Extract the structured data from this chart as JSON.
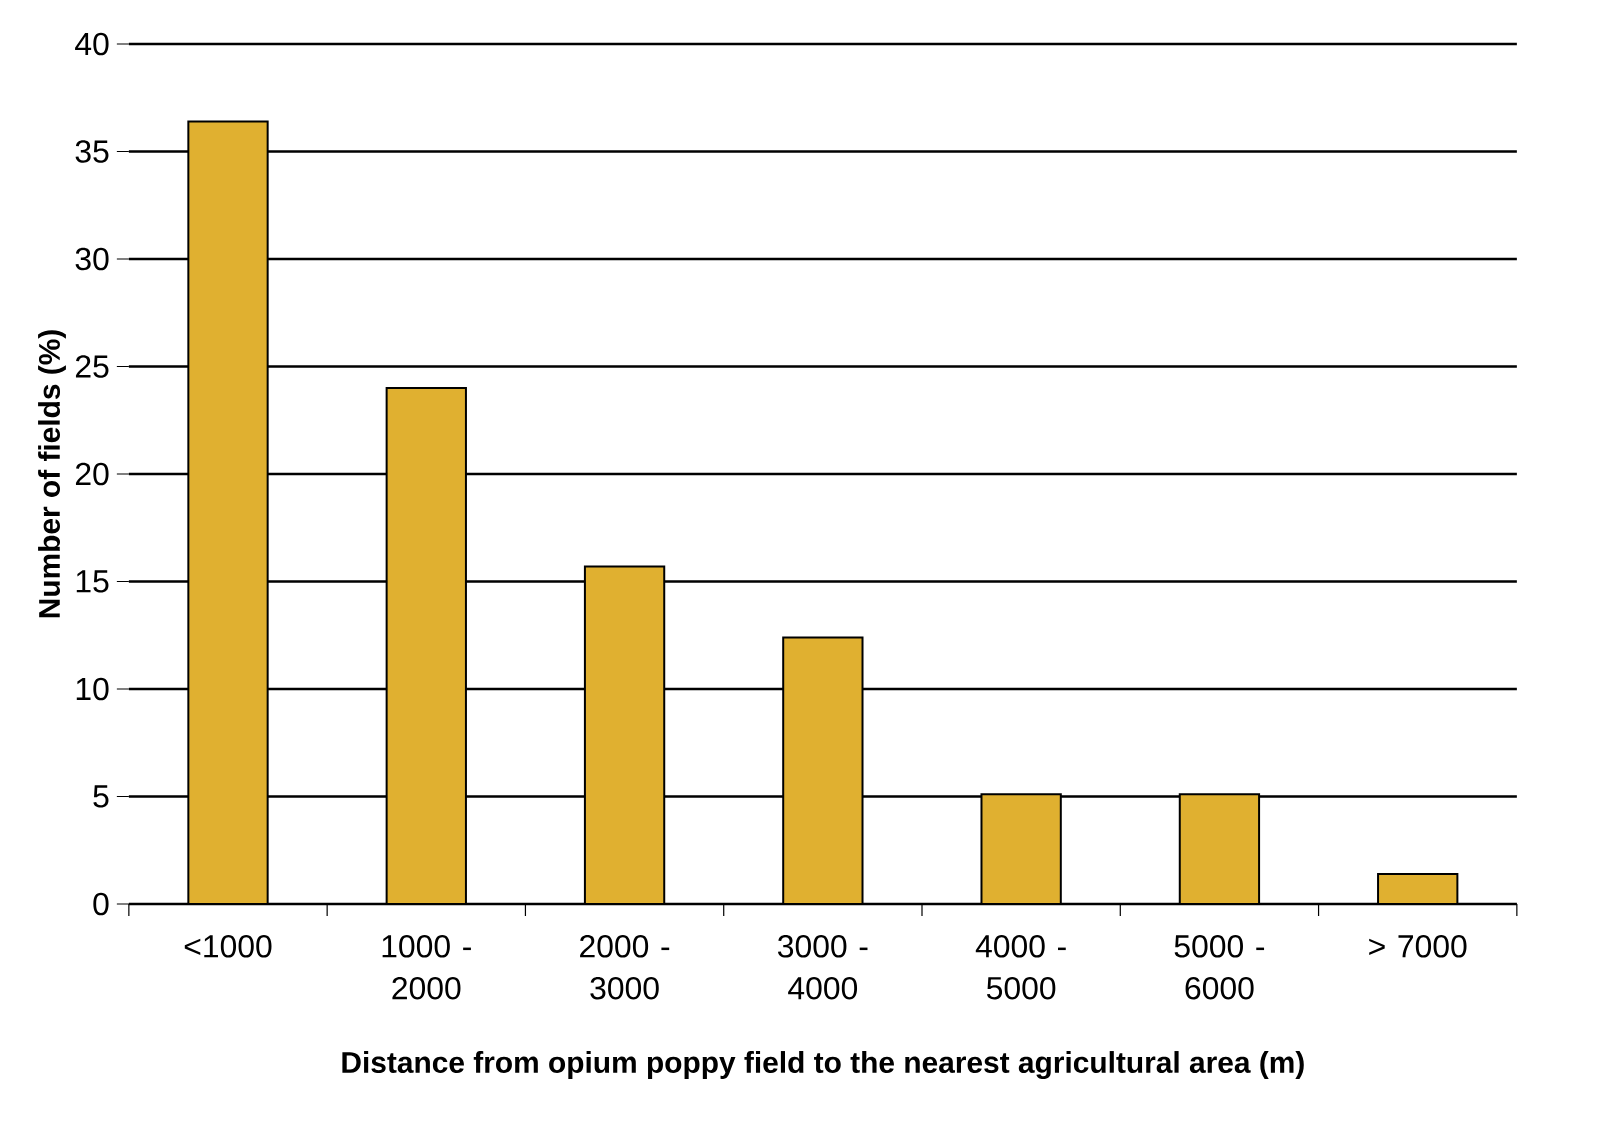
{
  "chart_data": {
    "type": "bar",
    "xlabel": "Distance from opium poppy field to the nearest agricultural area (m)",
    "ylabel": "Number of fields (%)",
    "categories": [
      "<1000",
      "1000 - 2000",
      "2000 - 3000",
      "3000 - 4000",
      "4000 - 5000",
      "5000 - 6000",
      "> 7000"
    ],
    "values": [
      36.4,
      24.0,
      15.7,
      12.4,
      5.1,
      5.1,
      1.4
    ],
    "color": "#e0b030",
    "ylim": [
      0,
      40
    ],
    "yticks": [
      0,
      5,
      10,
      15,
      20,
      25,
      30,
      35,
      40
    ],
    "grid": "y"
  }
}
